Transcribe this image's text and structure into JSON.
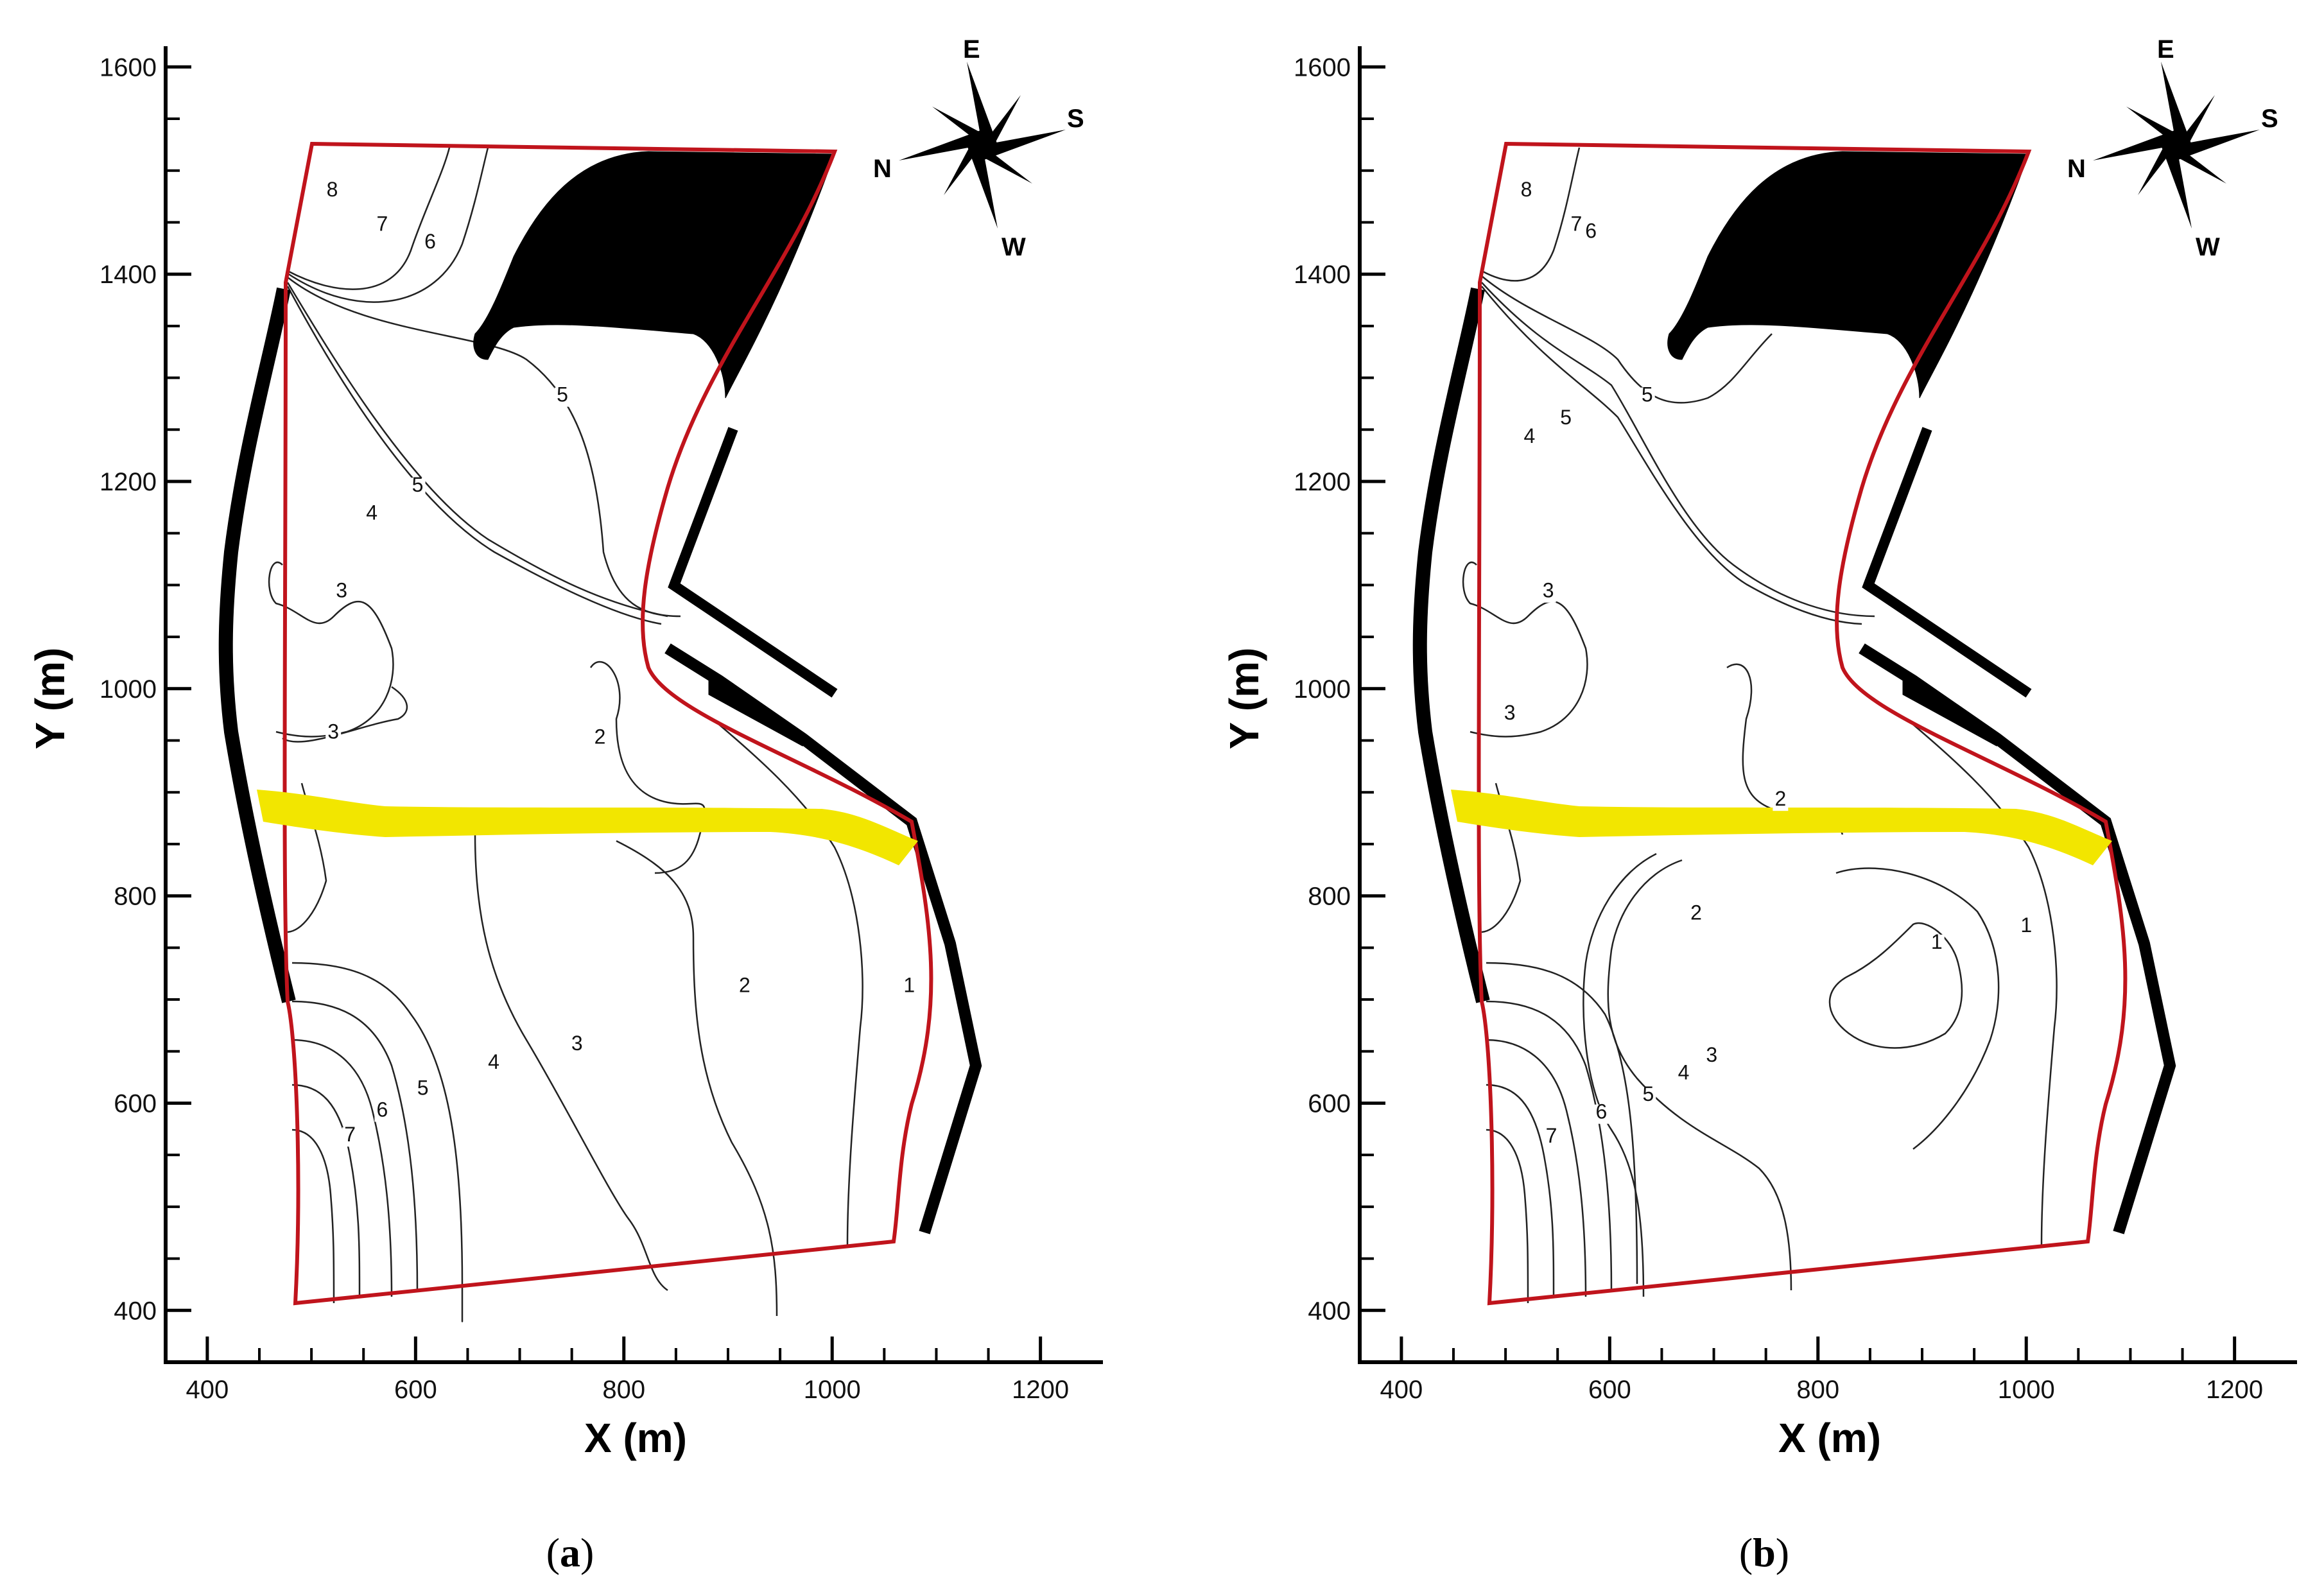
{
  "chart_data": [
    {
      "type": "contour",
      "panel_label": "a",
      "xlabel": "X (m)",
      "ylabel": "Y (m)",
      "xlim": [
        360,
        1260
      ],
      "ylim": [
        350,
        1620
      ],
      "x_ticks": [
        400,
        600,
        800,
        1000,
        1200
      ],
      "y_ticks": [
        400,
        600,
        800,
        1000,
        1200,
        1400,
        1600
      ],
      "compass": [
        "E",
        "S",
        "N",
        "W"
      ],
      "domain_boundary_color": "#c0141c",
      "structure_color": "#000000",
      "channel_color": "#f2e600",
      "contour_levels": [
        1,
        2,
        3,
        4,
        5,
        6,
        7,
        8
      ],
      "contour_labels": [
        {
          "text": "8",
          "x": 520,
          "y": 1475
        },
        {
          "text": "7",
          "x": 568,
          "y": 1442
        },
        {
          "text": "6",
          "x": 614,
          "y": 1425
        },
        {
          "text": "5",
          "x": 741,
          "y": 1277
        },
        {
          "text": "5",
          "x": 602,
          "y": 1190
        },
        {
          "text": "4",
          "x": 558,
          "y": 1163
        },
        {
          "text": "3",
          "x": 529,
          "y": 1088
        },
        {
          "text": "3",
          "x": 521,
          "y": 952
        },
        {
          "text": "2",
          "x": 777,
          "y": 947
        },
        {
          "text": "2",
          "x": 916,
          "y": 707
        },
        {
          "text": "1",
          "x": 1074,
          "y": 707
        },
        {
          "text": "3",
          "x": 755,
          "y": 651
        },
        {
          "text": "4",
          "x": 675,
          "y": 633
        },
        {
          "text": "5",
          "x": 607,
          "y": 608
        },
        {
          "text": "6",
          "x": 568,
          "y": 587
        },
        {
          "text": "7",
          "x": 537,
          "y": 563
        }
      ]
    },
    {
      "type": "contour",
      "panel_label": "b",
      "xlabel": "X (m)",
      "ylabel": "Y (m)",
      "xlim": [
        360,
        1260
      ],
      "ylim": [
        350,
        1620
      ],
      "x_ticks": [
        400,
        600,
        800,
        1000,
        1200
      ],
      "y_ticks": [
        400,
        600,
        800,
        1000,
        1200,
        1400,
        1600
      ],
      "compass": [
        "E",
        "S",
        "N",
        "W"
      ],
      "domain_boundary_color": "#c0141c",
      "structure_color": "#000000",
      "channel_color": "#f2e600",
      "contour_levels": [
        1,
        2,
        3,
        4,
        5,
        6,
        7,
        8
      ],
      "contour_labels": [
        {
          "text": "8",
          "x": 520,
          "y": 1475
        },
        {
          "text": "7",
          "x": 568,
          "y": 1442
        },
        {
          "text": "6",
          "x": 582,
          "y": 1435
        },
        {
          "text": "5",
          "x": 636,
          "y": 1277
        },
        {
          "text": "5",
          "x": 558,
          "y": 1255
        },
        {
          "text": "4",
          "x": 523,
          "y": 1237
        },
        {
          "text": "3",
          "x": 541,
          "y": 1088
        },
        {
          "text": "3",
          "x": 504,
          "y": 970
        },
        {
          "text": "2",
          "x": 764,
          "y": 887
        },
        {
          "text": "2",
          "x": 683,
          "y": 777
        },
        {
          "text": "1",
          "x": 914,
          "y": 749
        },
        {
          "text": "1",
          "x": 1000,
          "y": 765
        },
        {
          "text": "3",
          "x": 698,
          "y": 640
        },
        {
          "text": "4",
          "x": 671,
          "y": 623
        },
        {
          "text": "5",
          "x": 637,
          "y": 602
        },
        {
          "text": "6",
          "x": 592,
          "y": 585
        },
        {
          "text": "7",
          "x": 544,
          "y": 562
        }
      ]
    }
  ]
}
